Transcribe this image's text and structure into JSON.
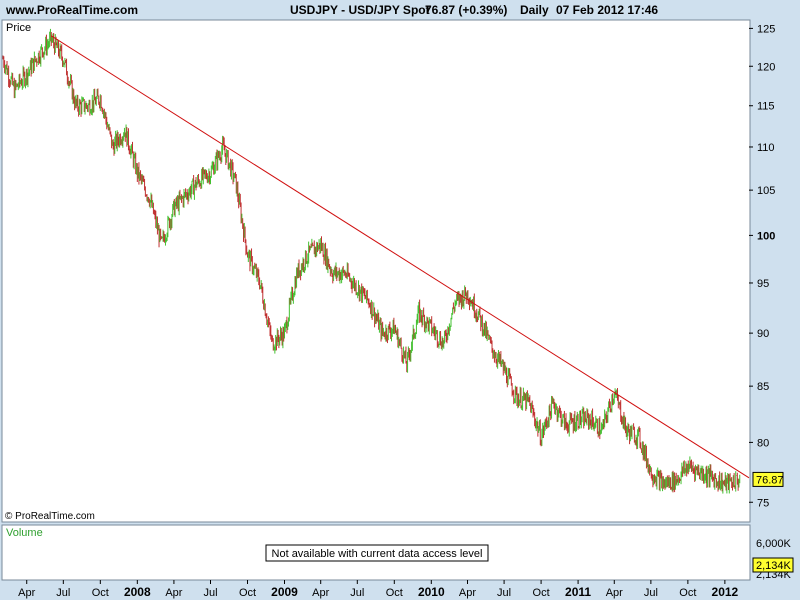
{
  "header": {
    "brand": "www.ProRealTime.com",
    "instrument": "USDJPY - USD/JPY Spot",
    "last": "76.87 (+0.39%)",
    "period": "Daily",
    "datetime": "07 Feb 2012 17:46"
  },
  "price_panel": {
    "label": "Price",
    "copyright": "© ProRealTime.com"
  },
  "volume_panel": {
    "label": "Volume",
    "message": "Not available with current data access level",
    "ticks": [
      "6,000K",
      "2,134K"
    ],
    "last_label": "2,134K"
  },
  "colors": {
    "up": "#43c030",
    "down": "#c03030",
    "trendline": "#d01010",
    "volume_label": "#30a030",
    "last_badge": "#ffff30"
  },
  "chart_data": {
    "type": "candlestick",
    "y_axis": {
      "ticks": [
        75,
        80,
        85,
        90,
        95,
        100,
        105,
        110,
        115,
        120,
        125
      ],
      "ylim": [
        73.5,
        126
      ]
    },
    "x_axis": {
      "ticks": [
        {
          "label": "Apr",
          "date": "2007-04"
        },
        {
          "label": "Jul",
          "date": "2007-07"
        },
        {
          "label": "Oct",
          "date": "2007-10"
        },
        {
          "label": "2008",
          "date": "2008-01",
          "bold": true
        },
        {
          "label": "Apr",
          "date": "2008-04"
        },
        {
          "label": "Jul",
          "date": "2008-07"
        },
        {
          "label": "Oct",
          "date": "2008-10"
        },
        {
          "label": "2009",
          "date": "2009-01",
          "bold": true
        },
        {
          "label": "Apr",
          "date": "2009-04"
        },
        {
          "label": "Jul",
          "date": "2009-07"
        },
        {
          "label": "Oct",
          "date": "2009-10"
        },
        {
          "label": "2010",
          "date": "2010-01",
          "bold": true
        },
        {
          "label": "Apr",
          "date": "2010-04"
        },
        {
          "label": "Jul",
          "date": "2010-07"
        },
        {
          "label": "Oct",
          "date": "2010-10"
        },
        {
          "label": "2011",
          "date": "2011-01",
          "bold": true
        },
        {
          "label": "Apr",
          "date": "2011-04"
        },
        {
          "label": "Jul",
          "date": "2011-07"
        },
        {
          "label": "Oct",
          "date": "2011-10"
        },
        {
          "label": "2012",
          "date": "2012-01",
          "bold": true
        }
      ]
    },
    "series": [
      {
        "date": "2007-02",
        "close": 121.0
      },
      {
        "date": "2007-03",
        "close": 117.0
      },
      {
        "date": "2007-04",
        "close": 119.0
      },
      {
        "date": "2007-05",
        "close": 121.5
      },
      {
        "date": "2007-06",
        "close": 123.5
      },
      {
        "date": "2007-07",
        "close": 121.0
      },
      {
        "date": "2007-08",
        "close": 115.0
      },
      {
        "date": "2007-09",
        "close": 115.0
      },
      {
        "date": "2007-10",
        "close": 116.0
      },
      {
        "date": "2007-11",
        "close": 110.0
      },
      {
        "date": "2007-12",
        "close": 112.0
      },
      {
        "date": "2008-01",
        "close": 107.0
      },
      {
        "date": "2008-02",
        "close": 104.0
      },
      {
        "date": "2008-03",
        "close": 99.0
      },
      {
        "date": "2008-04",
        "close": 103.0
      },
      {
        "date": "2008-05",
        "close": 104.5
      },
      {
        "date": "2008-06",
        "close": 106.0
      },
      {
        "date": "2008-07",
        "close": 107.0
      },
      {
        "date": "2008-08",
        "close": 110.0
      },
      {
        "date": "2008-09",
        "close": 106.0
      },
      {
        "date": "2008-10",
        "close": 98.0
      },
      {
        "date": "2008-11",
        "close": 95.0
      },
      {
        "date": "2008-12",
        "close": 89.0
      },
      {
        "date": "2009-01",
        "close": 90.0
      },
      {
        "date": "2009-02",
        "close": 96.0
      },
      {
        "date": "2009-03",
        "close": 98.0
      },
      {
        "date": "2009-04",
        "close": 99.0
      },
      {
        "date": "2009-05",
        "close": 96.0
      },
      {
        "date": "2009-06",
        "close": 96.0
      },
      {
        "date": "2009-07",
        "close": 94.5
      },
      {
        "date": "2009-08",
        "close": 93.0
      },
      {
        "date": "2009-09",
        "close": 90.0
      },
      {
        "date": "2009-10",
        "close": 90.5
      },
      {
        "date": "2009-11",
        "close": 87.0
      },
      {
        "date": "2009-12",
        "close": 92.0
      },
      {
        "date": "2010-01",
        "close": 90.5
      },
      {
        "date": "2010-02",
        "close": 89.0
      },
      {
        "date": "2010-03",
        "close": 93.0
      },
      {
        "date": "2010-04",
        "close": 94.0
      },
      {
        "date": "2010-05",
        "close": 91.5
      },
      {
        "date": "2010-06",
        "close": 88.5
      },
      {
        "date": "2010-07",
        "close": 86.5
      },
      {
        "date": "2010-08",
        "close": 84.0
      },
      {
        "date": "2010-09",
        "close": 83.5
      },
      {
        "date": "2010-10",
        "close": 80.5
      },
      {
        "date": "2010-11",
        "close": 83.5
      },
      {
        "date": "2010-12",
        "close": 81.5
      },
      {
        "date": "2011-01",
        "close": 82.0
      },
      {
        "date": "2011-02",
        "close": 82.0
      },
      {
        "date": "2011-03",
        "close": 81.0
      },
      {
        "date": "2011-04",
        "close": 84.5
      },
      {
        "date": "2011-05",
        "close": 81.0
      },
      {
        "date": "2011-06",
        "close": 80.5
      },
      {
        "date": "2011-07",
        "close": 77.5
      },
      {
        "date": "2011-08",
        "close": 76.5
      },
      {
        "date": "2011-09",
        "close": 76.8
      },
      {
        "date": "2011-10",
        "close": 78.0
      },
      {
        "date": "2011-11",
        "close": 77.5
      },
      {
        "date": "2011-12",
        "close": 77.0
      },
      {
        "date": "2012-01",
        "close": 76.5
      },
      {
        "date": "2012-02-07",
        "close": 76.87
      }
    ],
    "trendline": [
      {
        "date": "2007-06",
        "value": 124.0
      },
      {
        "date": "2012-03",
        "value": 77.0
      }
    ],
    "last_value": "76.87"
  }
}
